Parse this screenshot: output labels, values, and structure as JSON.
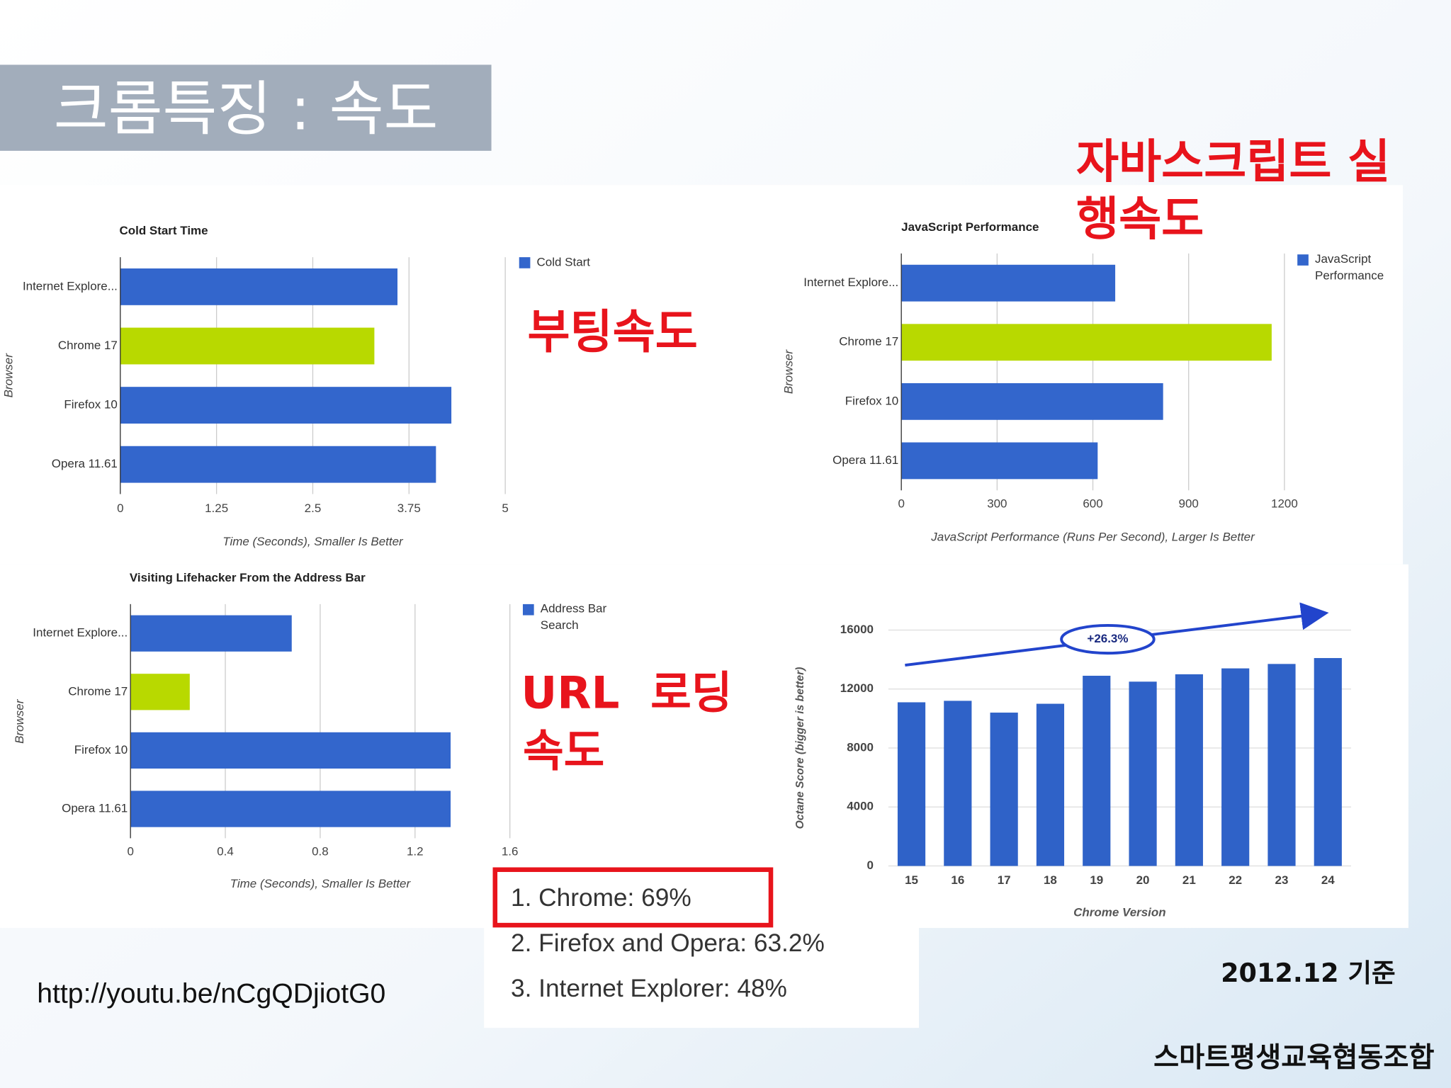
{
  "title": "크롬특징 : 속도",
  "annotations": {
    "boot": "부팅속도",
    "javascript": [
      "자바스크립트 실",
      "행속도"
    ],
    "url": [
      "URL  로딩",
      "속도"
    ]
  },
  "chart_data": [
    {
      "type": "hbar",
      "title": "Cold Start Time",
      "x_label": "Time (Seconds), Smaller Is Better",
      "y_label": "Browser",
      "categories": [
        "Internet Explore...",
        "Chrome 17",
        "Firefox 10",
        "Opera 11.61"
      ],
      "series": [
        {
          "name": "Cold Start",
          "color": "#3366cc",
          "values": [
            3.6,
            3.3,
            4.3,
            4.1
          ]
        }
      ],
      "bar_colors": [
        "#3366cc",
        "#b8d900",
        "#3366cc",
        "#3366cc"
      ],
      "xlim": [
        0,
        5
      ],
      "xticks": [
        0,
        1.25,
        2.5,
        3.75,
        5
      ],
      "grid": true
    },
    {
      "type": "hbar",
      "title": "JavaScript Performance",
      "x_label": "JavaScript Performance (Runs Per Second), Larger Is Better",
      "y_label": "Browser",
      "categories": [
        "Internet Explore...",
        "Chrome 17",
        "Firefox 10",
        "Opera 11.61"
      ],
      "series": [
        {
          "name": "JavaScript Performance",
          "color": "#3366cc",
          "values": [
            670,
            1160,
            820,
            615
          ]
        }
      ],
      "bar_colors": [
        "#3366cc",
        "#b8d900",
        "#3366cc",
        "#3366cc"
      ],
      "xlim": [
        0,
        1200
      ],
      "xticks": [
        0,
        300,
        600,
        900,
        1200
      ],
      "grid": true
    },
    {
      "type": "hbar",
      "title": "Visiting Lifehacker From the Address Bar",
      "x_label": "Time (Seconds), Smaller Is Better",
      "y_label": "Browser",
      "categories": [
        "Internet Explore...",
        "Chrome 17",
        "Firefox 10",
        "Opera 11.61"
      ],
      "series": [
        {
          "name": "Address Bar Search",
          "color": "#3366cc",
          "values": [
            0.68,
            0.25,
            1.35,
            1.35
          ]
        }
      ],
      "bar_colors": [
        "#3366cc",
        "#b8d900",
        "#3366cc",
        "#3366cc"
      ],
      "xlim": [
        0,
        1.6
      ],
      "xticks": [
        0,
        0.4,
        0.8,
        1.2,
        1.6
      ],
      "grid": true
    },
    {
      "type": "bar",
      "x_label": "Chrome Version",
      "y_label": "Octane Score (bigger is better)",
      "annotation": "+26.3%",
      "categories": [
        "15",
        "16",
        "17",
        "18",
        "19",
        "20",
        "21",
        "22",
        "23",
        "24"
      ],
      "values": [
        11100,
        11200,
        10400,
        11000,
        12900,
        12500,
        13000,
        13400,
        13700,
        14100
      ],
      "color": "#2f62c8",
      "ylim": [
        0,
        16000
      ],
      "yticks": [
        0,
        4000,
        8000,
        12000,
        16000
      ],
      "grid": true
    }
  ],
  "ranking": [
    "1. Chrome: 69%",
    "2. Firefox and Opera: 63.2%",
    "3. Internet Explorer: 48%"
  ],
  "source_url": "http://youtu.be/nCgQDjiotG0",
  "date": "2012.12 기준",
  "footer": "스마트평생교육협동조합"
}
